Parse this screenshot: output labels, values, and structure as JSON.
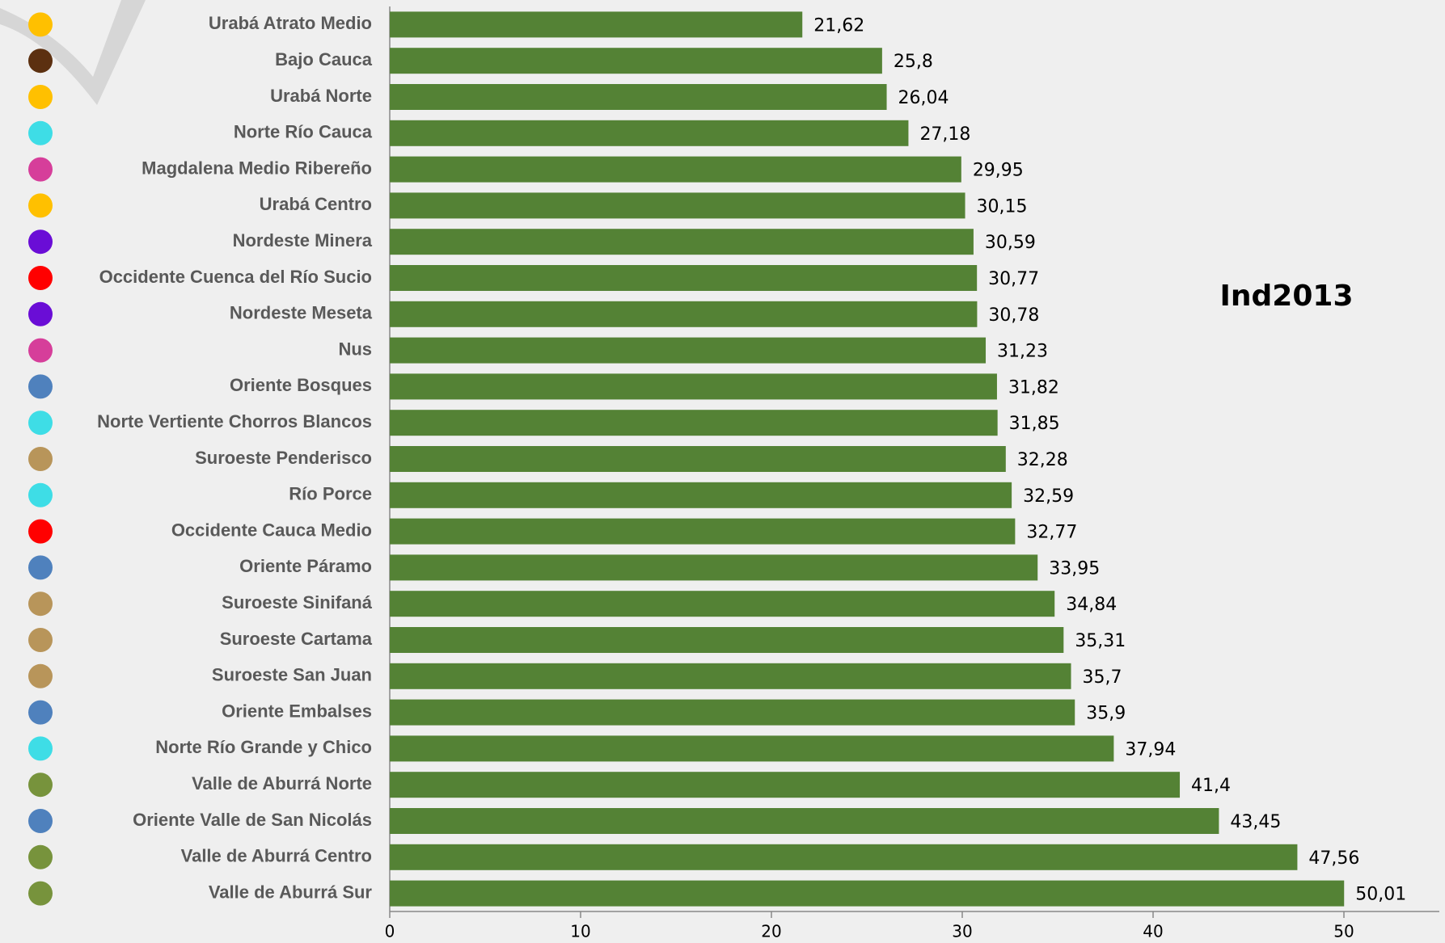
{
  "chart_data": {
    "type": "bar",
    "orientation": "horizontal",
    "annotation": "Ind2013",
    "categories": [
      "Urabá Atrato Medio",
      "Bajo Cauca",
      "Urabá Norte",
      "Norte Río Cauca",
      "Magdalena Medio Ribereño",
      "Urabá Centro",
      "Nordeste Minera",
      "Occidente Cuenca del Río Sucio",
      "Nordeste Meseta",
      "Nus",
      "Oriente Bosques",
      "Norte Vertiente Chorros Blancos",
      "Suroeste Penderisco",
      "Río Porce",
      "Occidente Cauca Medio",
      "Oriente Páramo",
      "Suroeste Sinifaná",
      "Suroeste Cartama",
      "Suroeste San Juan",
      "Oriente Embalses",
      "Norte Río Grande y Chico",
      "Valle de Aburrá Norte",
      "Oriente Valle de San Nicolás",
      "Valle de Aburrá Centro",
      "Valle de Aburrá Sur"
    ],
    "values": [
      21.62,
      25.8,
      26.04,
      27.18,
      29.95,
      30.15,
      30.59,
      30.77,
      30.78,
      31.23,
      31.82,
      31.85,
      32.28,
      32.59,
      32.77,
      33.95,
      34.84,
      35.31,
      35.7,
      35.9,
      37.94,
      41.4,
      43.45,
      47.56,
      50.01
    ],
    "value_labels": [
      "21,62",
      "25,8",
      "26,04",
      "27,18",
      "29,95",
      "30,15",
      "30,59",
      "30,77",
      "30,78",
      "31,23",
      "31,82",
      "31,85",
      "32,28",
      "32,59",
      "32,77",
      "33,95",
      "34,84",
      "35,31",
      "35,7",
      "35,9",
      "37,94",
      "41,4",
      "43,45",
      "47,56",
      "50,01"
    ],
    "color": "#548235",
    "marker_colors": [
      "#FFC000",
      "#5C3010",
      "#FFC000",
      "#3EDDE6",
      "#D63E9A",
      "#FFC000",
      "#6A0DD6",
      "#FF0000",
      "#6A0DD6",
      "#D63E9A",
      "#4F81BD",
      "#3EDDE6",
      "#B8955A",
      "#3EDDE6",
      "#FF0000",
      "#4F81BD",
      "#B8955A",
      "#B8955A",
      "#B8955A",
      "#4F81BD",
      "#3EDDE6",
      "#77933C",
      "#4F81BD",
      "#77933C",
      "#77933C"
    ],
    "xlim": [
      0,
      55
    ],
    "xticks": [
      0,
      10,
      20,
      30,
      40,
      50
    ]
  }
}
